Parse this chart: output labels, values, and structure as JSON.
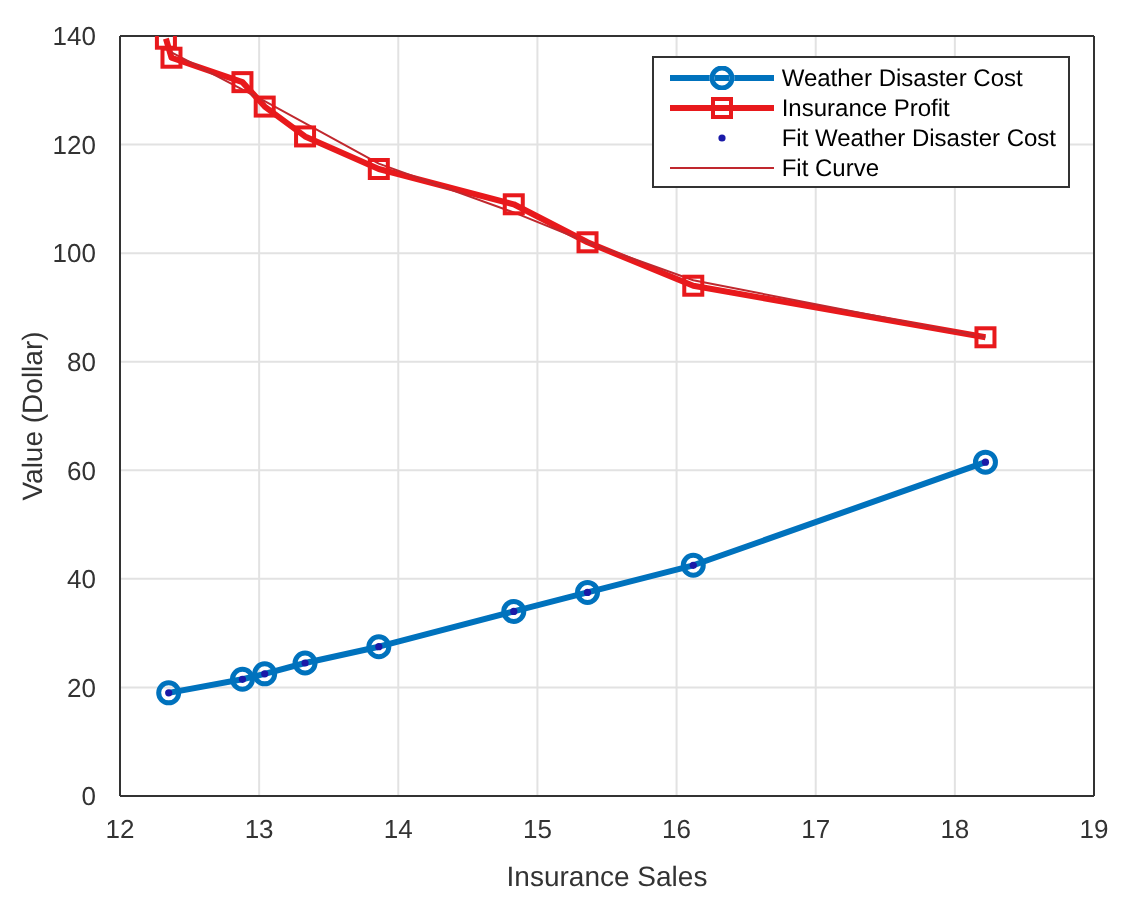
{
  "chart_data": {
    "type": "line",
    "xlabel": "Insurance Sales",
    "ylabel": "Value (Dollar)",
    "xlim": [
      12,
      19
    ],
    "xticks": [
      12,
      13,
      14,
      15,
      16,
      17,
      18,
      19
    ],
    "ylim": [
      0,
      140
    ],
    "yticks": [
      0,
      20,
      40,
      60,
      80,
      100,
      120,
      140
    ],
    "grid": true,
    "legend": "top right",
    "series": [
      {
        "name": "Weather Disaster Cost",
        "marker": "circle",
        "color": "#0072bd",
        "x": [
          12.35,
          12.88,
          13.04,
          13.33,
          13.86,
          14.83,
          15.36,
          16.12,
          18.22
        ],
        "values": [
          19,
          21.5,
          22.5,
          24.5,
          27.5,
          34,
          37.5,
          42.5,
          61.5
        ]
      },
      {
        "name": "Insurance Profit",
        "marker": "square",
        "color": "#e8191c",
        "x": [
          12.33,
          12.37,
          12.88,
          13.04,
          13.33,
          13.86,
          14.83,
          15.36,
          16.12,
          18.22
        ],
        "values": [
          139.5,
          136,
          131.5,
          127,
          121.5,
          115.5,
          109,
          102,
          94,
          84.5
        ]
      },
      {
        "name": "Fit Weather Disaster Cost",
        "type": "scatter",
        "marker": "circle",
        "color": "#1a1aa8",
        "x": [
          12.35,
          12.88,
          13.04,
          13.33,
          13.86,
          14.83,
          15.36,
          16.12,
          18.22
        ],
        "values": [
          19,
          21.5,
          22.5,
          24.5,
          27.5,
          34,
          37.5,
          42.5,
          61.5
        ]
      },
      {
        "name": "Fit Curve",
        "marker": "none",
        "color": "#c0282e",
        "x": [
          12.37,
          13.04,
          13.86,
          14.83,
          15.36,
          16.12,
          18.22
        ],
        "values": [
          137,
          128,
          116.5,
          107.5,
          102,
          95,
          84.5
        ]
      }
    ]
  }
}
